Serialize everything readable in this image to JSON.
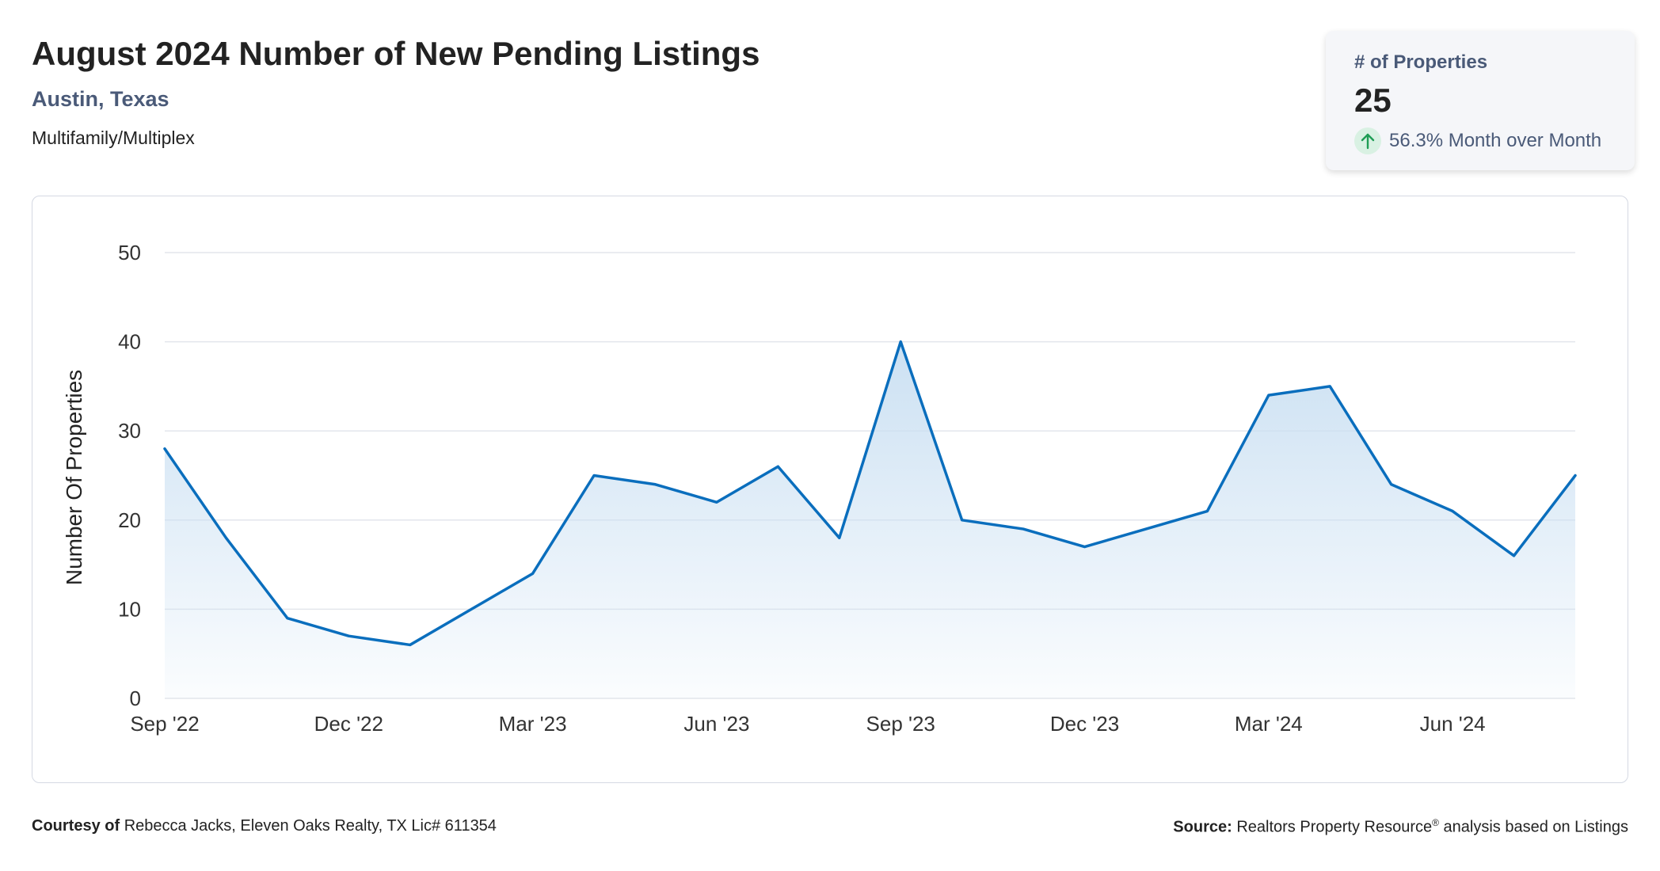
{
  "header": {
    "title": "August 2024 Number of New Pending Listings",
    "location": "Austin, Texas",
    "property_type": "Multifamily/Multiplex"
  },
  "kpi": {
    "label": "# of Properties",
    "value": "25",
    "change": "56.3% Month over Month",
    "icon": "arrow-up-icon",
    "change_color": "#1f9d55"
  },
  "footer": {
    "courtesy_label": "Courtesy of",
    "courtesy_text": "Rebecca Jacks, Eleven Oaks Realty, TX Lic# 611354",
    "source_label": "Source:",
    "source_name": "Realtors Property Resource",
    "source_mark": "®",
    "source_suffix": "analysis based on Listings"
  },
  "colors": {
    "line": "#0a6ebd",
    "fill_top": "#c9dff2",
    "grid": "#e3e6ec",
    "axis_text": "#333333"
  },
  "chart_data": {
    "type": "area",
    "ylabel": "Number Of Properties",
    "xlabel": "",
    "ylim": [
      0,
      50
    ],
    "yticks": [
      0,
      10,
      20,
      30,
      40,
      50
    ],
    "grid": true,
    "x": [
      "Sep '22",
      "Oct '22",
      "Nov '22",
      "Dec '22",
      "Jan '23",
      "Feb '23",
      "Mar '23",
      "Apr '23",
      "May '23",
      "Jun '23",
      "Jul '23",
      "Aug '23",
      "Sep '23",
      "Oct '23",
      "Nov '23",
      "Dec '23",
      "Jan '24",
      "Feb '24",
      "Mar '24",
      "Apr '24",
      "May '24",
      "Jun '24",
      "Jul '24",
      "Aug '24"
    ],
    "xtick_labels": [
      "Sep '22",
      "Dec '22",
      "Mar '23",
      "Jun '23",
      "Sep '23",
      "Dec '23",
      "Mar '24",
      "Jun '24"
    ],
    "series": [
      {
        "values": [
          28,
          18,
          9,
          7,
          6,
          10,
          14,
          25,
          24,
          22,
          26,
          18,
          40,
          20,
          19,
          17,
          19,
          21,
          34,
          35,
          24,
          21,
          16,
          25
        ]
      }
    ]
  }
}
